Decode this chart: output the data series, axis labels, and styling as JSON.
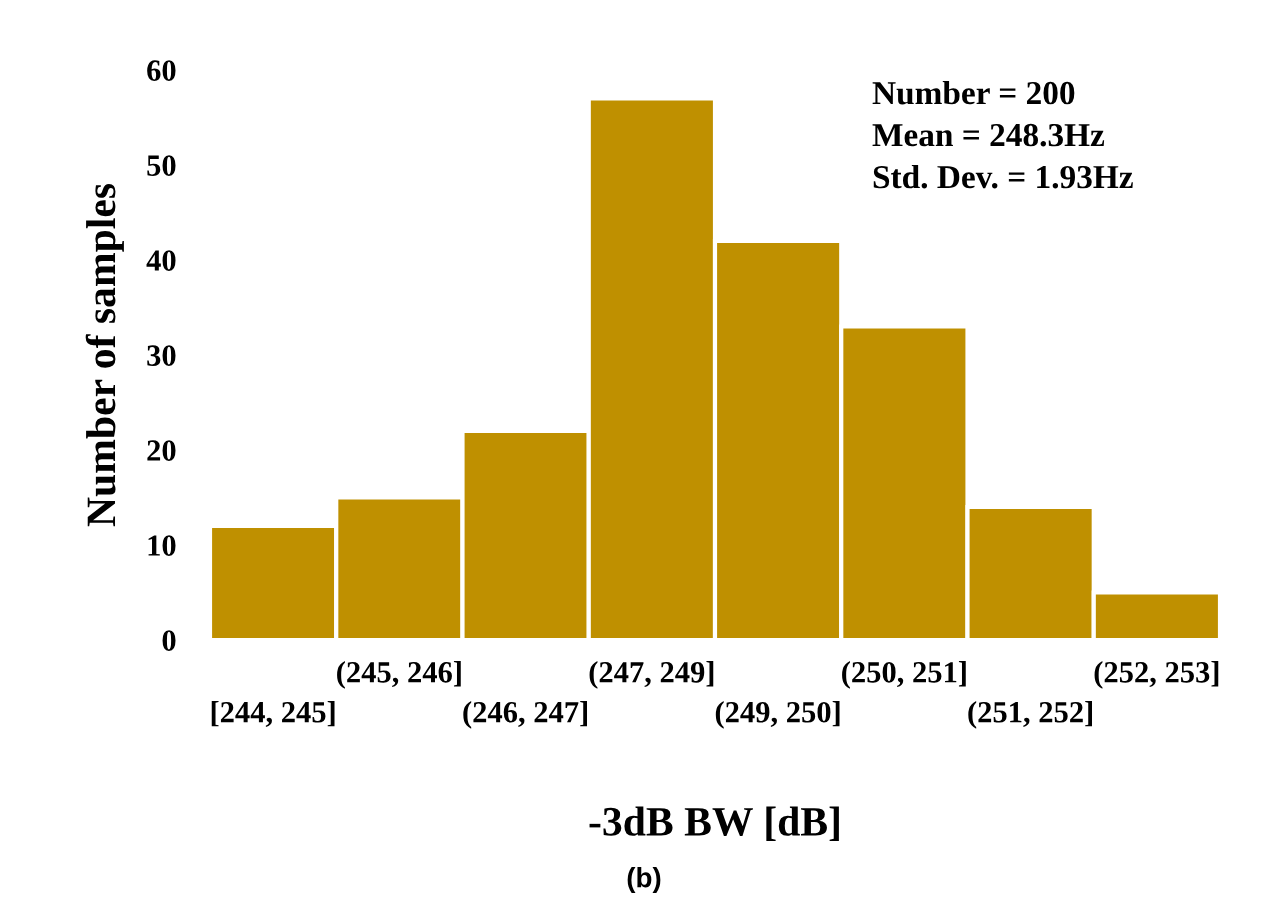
{
  "chart_data": {
    "type": "bar",
    "xlabel": "-3dB BW [dB]",
    "ylabel": "Number of samples",
    "categories": [
      "[244, 245]",
      "(245, 246]",
      "(246, 247]",
      "(247, 249]",
      "(249, 250]",
      "(250, 251]",
      "(251, 252]",
      "(252, 253]"
    ],
    "values": [
      12,
      15,
      22,
      57,
      42,
      33,
      14,
      5
    ],
    "color": "#bf9000",
    "ylim": [
      0,
      60
    ],
    "yticks": [
      0,
      10,
      20,
      30,
      40,
      50,
      60
    ],
    "grid": false,
    "legend": false,
    "annotations": [
      "Number = 200",
      "Mean = 248.3Hz",
      "Std. Dev. = 1.93Hz",
      "(b)"
    ]
  }
}
